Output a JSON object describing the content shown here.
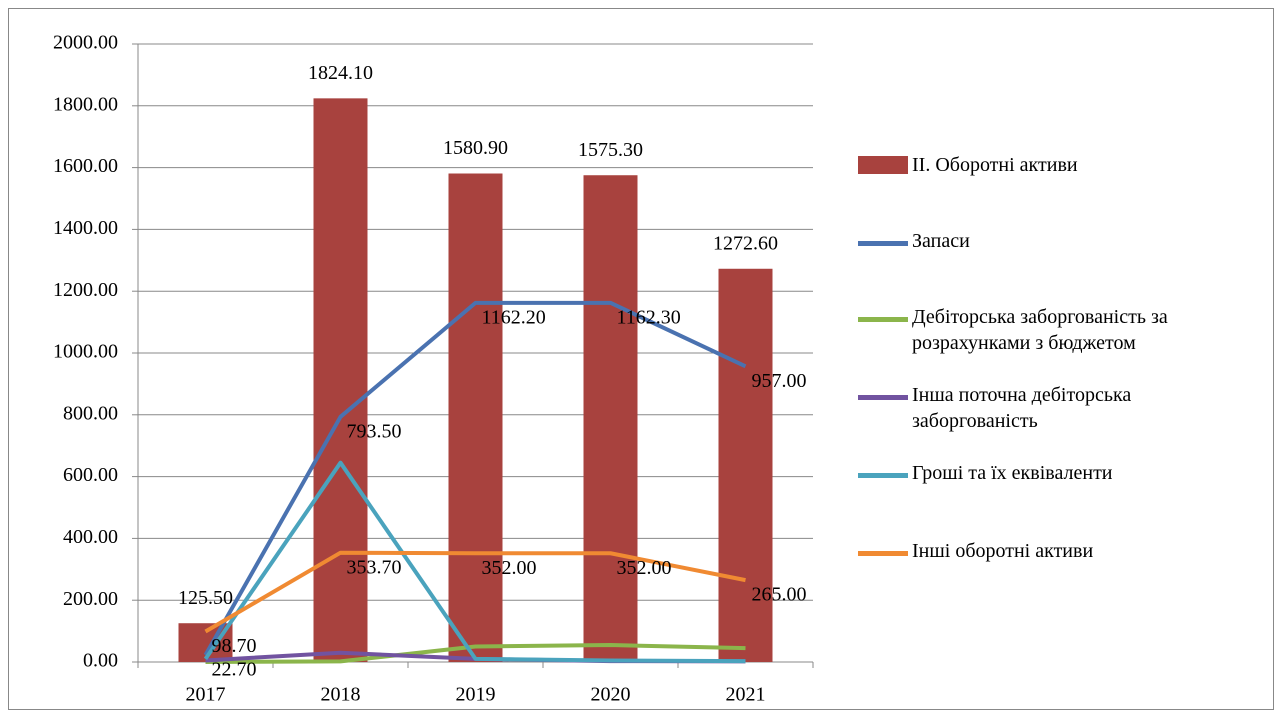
{
  "chart_data": {
    "type": "bar-line",
    "categories": [
      "2017",
      "2018",
      "2019",
      "2020",
      "2021"
    ],
    "ylim": [
      0,
      2000
    ],
    "yticks": [
      {
        "value": 0,
        "label": "0.00"
      },
      {
        "value": 200,
        "label": "200.00"
      },
      {
        "value": 400,
        "label": "400.00"
      },
      {
        "value": 600,
        "label": "600.00"
      },
      {
        "value": 800,
        "label": "800.00"
      },
      {
        "value": 1000,
        "label": "1000.00"
      },
      {
        "value": 1200,
        "label": "1200.00"
      },
      {
        "value": 1400,
        "label": "1400.00"
      },
      {
        "value": 1600,
        "label": "1600.00"
      },
      {
        "value": 1800,
        "label": "1800.00"
      },
      {
        "value": 2000,
        "label": "2000.00"
      }
    ],
    "grid": true,
    "legend": "right",
    "series": [
      {
        "name": "ІІ. Оборотні активи",
        "type": "bar",
        "color": "#a8423e",
        "values": [
          125.5,
          1824.1,
          1580.9,
          1575.3,
          1272.6
        ],
        "value_labels": [
          "125.50",
          "1824.10",
          "1580.90",
          "1575.30",
          "1272.60"
        ]
      },
      {
        "name": "Запаси",
        "type": "line",
        "color": "#4a72b0",
        "values": [
          22.7,
          793.5,
          1162.2,
          1162.3,
          957.0
        ],
        "value_labels": [
          "22.70",
          "793.50",
          "1162.20",
          "1162.30",
          "957.00"
        ]
      },
      {
        "name": "Дебіторська заборгованість за розрахунками з бюджетом",
        "type": "line",
        "color": "#8bb54b",
        "values": [
          0,
          2,
          50,
          55,
          45
        ]
      },
      {
        "name": "Інша поточна дебіторська заборгованість",
        "type": "line",
        "color": "#7153a0",
        "values": [
          5,
          30,
          10,
          3,
          2
        ]
      },
      {
        "name": "Гроші та їх еквіваленти",
        "type": "line",
        "color": "#4aa3bd",
        "values": [
          10,
          645,
          10,
          5,
          3
        ]
      },
      {
        "name": "Інші оборотні активи",
        "type": "line",
        "color": "#f08a32",
        "values": [
          98.7,
          353.7,
          352.0,
          352.0,
          265.0
        ],
        "value_labels": [
          "98.70",
          "353.70",
          "352.00",
          "352.00",
          "265.00"
        ]
      }
    ]
  }
}
